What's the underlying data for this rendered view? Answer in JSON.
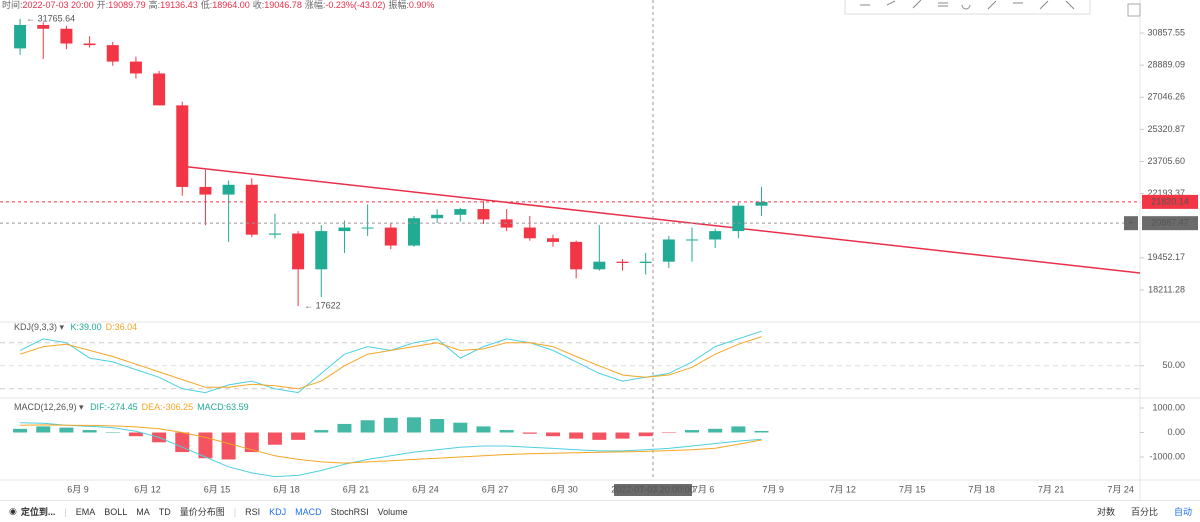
{
  "chart_data": [
    {
      "type": "candlestick",
      "log_scale": true,
      "up_color": "#22ab94",
      "down_color": "#f23645",
      "info_bar": [
        {
          "label": "时间:",
          "value": "2022-07-03 20:00"
        },
        {
          "label": "开:",
          "value": "19089.79"
        },
        {
          "label": "高:",
          "value": "19136.43"
        },
        {
          "label": "低:",
          "value": "18964.00"
        },
        {
          "label": "收:",
          "value": "19046.78"
        },
        {
          "label": "涨幅:",
          "value": "-0.23%(-43.02)"
        },
        {
          "label": "振幅:",
          "value": "0.90%"
        }
      ],
      "categories": [
        null,
        null,
        null,
        "6月 9",
        null,
        null,
        "6月 12",
        null,
        null,
        "6月 15",
        null,
        null,
        "6月 18",
        null,
        null,
        "6月 21",
        null,
        null,
        "6月 24",
        null,
        null,
        "6月 27",
        null,
        null,
        "6月 30",
        null,
        null,
        null,
        null,
        null,
        "7月 6",
        null,
        null,
        "7月 9",
        null,
        null,
        "7月 12",
        null,
        null,
        "7月 15",
        null,
        null,
        "7月 18",
        null,
        null,
        "7月 21",
        null,
        null,
        "7月 24"
      ],
      "open": [
        29900,
        31370,
        31130,
        30200,
        30100,
        29100,
        28400,
        26600,
        22500,
        22150,
        22600,
        20400,
        20450,
        19000,
        20550,
        20700,
        20700,
        19950,
        21100,
        21250,
        21500,
        21050,
        20700,
        20250,
        20100,
        19000,
        19300,
        19250,
        19300,
        20200,
        20200,
        20550,
        21650,
        null,
        null,
        null,
        null,
        null,
        null,
        null,
        null,
        null,
        null,
        null,
        null,
        null,
        null,
        null,
        null
      ],
      "high": [
        31765.64,
        31550,
        31300,
        30650,
        30300,
        29400,
        28550,
        26800,
        23300,
        22800,
        22900,
        21300,
        20550,
        20800,
        21000,
        21700,
        20900,
        21200,
        21500,
        21550,
        21850,
        21500,
        21200,
        20400,
        20150,
        20800,
        19400,
        19650,
        20350,
        20700,
        20650,
        21800,
        22500,
        null,
        null,
        null,
        null,
        null,
        null,
        null,
        null,
        null,
        null,
        null,
        null,
        null,
        null,
        null,
        null
      ],
      "low": [
        29500,
        29250,
        29850,
        29950,
        28850,
        28100,
        26600,
        22100,
        20800,
        20100,
        20300,
        20250,
        17622,
        17950,
        19650,
        20350,
        19800,
        19900,
        20900,
        20950,
        20850,
        20550,
        20150,
        19900,
        18650,
        18950,
        18950,
        18800,
        19050,
        19300,
        19850,
        20250,
        21200,
        null,
        null,
        null,
        null,
        null,
        null,
        null,
        null,
        null,
        null,
        null,
        null,
        null,
        null,
        null,
        null
      ],
      "close": [
        31370,
        31130,
        30200,
        30100,
        29100,
        28400,
        26600,
        22500,
        22150,
        22600,
        20400,
        20450,
        19000,
        20550,
        20700,
        20700,
        19950,
        21100,
        21250,
        21500,
        21050,
        20700,
        20250,
        20100,
        19000,
        19300,
        19250,
        19300,
        20200,
        20200,
        20550,
        21650,
        21820.14,
        null,
        null,
        null,
        null,
        null,
        null,
        null,
        null,
        null,
        null,
        null,
        null,
        null,
        null,
        null,
        null
      ],
      "annotations": [
        {
          "text": "← 31765.64",
          "index": 0,
          "value": 31765.64
        },
        {
          "text": "← 17622",
          "index": 12,
          "value": 17622
        }
      ],
      "ylim": [
        17053,
        33021
      ],
      "yticks": [
        30857.55,
        28889.09,
        27046.26,
        25320.87,
        {
          "value": 23705.6,
          "label": "23705.60"
        },
        22193.37,
        19452.17,
        18211.28
      ],
      "last_price": {
        "value": 21820.14,
        "label": "21820.14",
        "color": "#f23645"
      },
      "crosshair": {
        "value": 20887.47,
        "label": "20887.47",
        "x_label": "2022-07-03 20:00:00",
        "button": "+"
      }
    },
    {
      "type": "line",
      "title": "KDJ(9,3,3)",
      "legend": [
        {
          "text": "K:39.00",
          "color": "#22ab94"
        },
        {
          "text": "D:36.04",
          "color": "#f5a623"
        }
      ],
      "series": [
        {
          "name": "K",
          "color": "#4dd0e1",
          "values": [
            70,
            85,
            80,
            60,
            55,
            45,
            35,
            20,
            15,
            25,
            30,
            20,
            15,
            40,
            65,
            75,
            70,
            80,
            85,
            60,
            75,
            85,
            80,
            70,
            55,
            40,
            30,
            35,
            40,
            55,
            75,
            85,
            95,
            null,
            null,
            null,
            null,
            null,
            null,
            null,
            null,
            null,
            null,
            null,
            null,
            null,
            null,
            null,
            null
          ]
        },
        {
          "name": "D",
          "color": "#f5a623",
          "values": [
            65,
            75,
            78,
            70,
            62,
            52,
            42,
            32,
            22,
            22,
            26,
            24,
            20,
            30,
            50,
            65,
            70,
            75,
            80,
            70,
            72,
            80,
            80,
            75,
            62,
            50,
            38,
            35,
            38,
            48,
            65,
            78,
            88,
            null,
            null,
            null,
            null,
            null,
            null,
            null,
            null,
            null,
            null,
            null,
            null,
            null,
            null,
            null,
            null
          ]
        }
      ],
      "ylim": [
        8,
        107
      ],
      "yticks": [
        {
          "value": 50,
          "label": "50.00"
        }
      ],
      "dashed_levels": [
        20,
        80
      ]
    },
    {
      "type": "macd",
      "title": "MACD(12,26,9)",
      "legend": [
        {
          "text": "DIF:-274.45",
          "color": "#22ab94"
        },
        {
          "text": "DEA:-306.25",
          "color": "#f5a623"
        },
        {
          "text": "MACD:63.59",
          "color": "#22ab94"
        }
      ],
      "up_color": "#22ab94",
      "down_color": "#f23645",
      "histogram": [
        150,
        250,
        200,
        100,
        20,
        -150,
        -400,
        -800,
        -1050,
        -1100,
        -800,
        -500,
        -300,
        100,
        350,
        500,
        600,
        620,
        550,
        400,
        250,
        100,
        -50,
        -150,
        -250,
        -300,
        -250,
        -150,
        -20,
        100,
        150,
        250,
        63.59,
        null,
        null,
        null,
        null,
        null,
        null,
        null,
        null,
        null,
        null,
        null,
        null,
        null,
        null,
        null,
        null
      ],
      "series": [
        {
          "name": "DIF",
          "color": "#4dd0e1",
          "values": [
            400,
            380,
            300,
            250,
            200,
            50,
            -200,
            -600,
            -1000,
            -1400,
            -1650,
            -1800,
            -1750,
            -1550,
            -1300,
            -1100,
            -950,
            -800,
            -700,
            -600,
            -550,
            -550,
            -600,
            -650,
            -700,
            -750,
            -750,
            -700,
            -650,
            -550,
            -450,
            -350,
            -274.45,
            null,
            null,
            null,
            null,
            null,
            null,
            null,
            null,
            null,
            null,
            null,
            null,
            null,
            null,
            null,
            null
          ]
        },
        {
          "name": "DEA",
          "color": "#f5a623",
          "values": [
            300,
            310,
            300,
            290,
            270,
            230,
            150,
            0,
            -200,
            -450,
            -700,
            -950,
            -1100,
            -1200,
            -1250,
            -1200,
            -1150,
            -1100,
            -1050,
            -1000,
            -950,
            -900,
            -870,
            -850,
            -830,
            -810,
            -790,
            -770,
            -740,
            -700,
            -640,
            -480,
            -306.25,
            null,
            null,
            null,
            null,
            null,
            null,
            null,
            null,
            null,
            null,
            null,
            null,
            null,
            null,
            null,
            null
          ]
        }
      ],
      "ylim": [
        -1939,
        1327
      ],
      "yticks": [
        {
          "value": 1000,
          "label": "1000.00"
        },
        {
          "value": 0,
          "label": "0.00"
        },
        {
          "value": -1000,
          "label": "-1000.00"
        }
      ]
    }
  ],
  "toolbar": {
    "locate": "定位到...",
    "main_indicators": [
      {
        "text": "EMA",
        "active": false
      },
      {
        "text": "BOLL",
        "active": false
      },
      {
        "text": "MA",
        "active": false
      },
      {
        "text": "TD",
        "active": false
      },
      {
        "text": "量价分布图",
        "active": false
      }
    ],
    "sub_indicators": [
      {
        "text": "RSI",
        "active": false
      },
      {
        "text": "KDJ",
        "active": true
      },
      {
        "text": "MACD",
        "active": true
      },
      {
        "text": "StochRSI",
        "active": false
      },
      {
        "text": "Volume",
        "active": false
      }
    ],
    "scale_options": [
      {
        "text": "对数",
        "active": false
      },
      {
        "text": "百分比",
        "active": false
      },
      {
        "text": "自动",
        "active": true
      }
    ]
  }
}
